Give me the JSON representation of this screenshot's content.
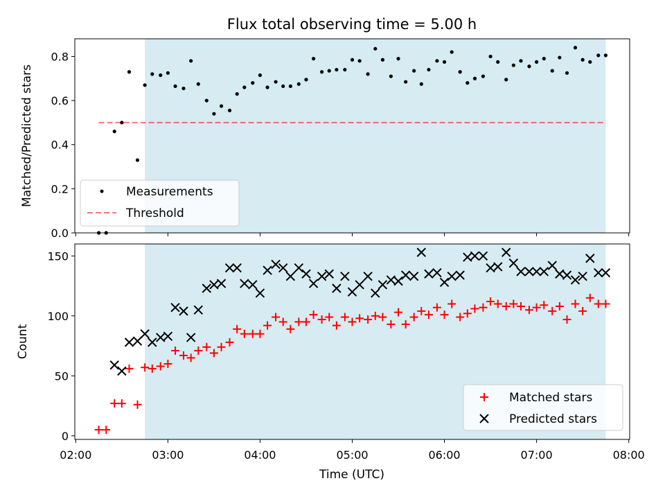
{
  "chart_data": {
    "title": "Flux total observing time = 5.00 h",
    "xlabel": "Time (UTC)",
    "x_unit": "hours UTC (decimal)",
    "xlim": [
      1.99,
      8.01
    ],
    "xticks": [
      {
        "v": 2,
        "label": "02:00"
      },
      {
        "v": 3,
        "label": "03:00"
      },
      {
        "v": 4,
        "label": "04:00"
      },
      {
        "v": 5,
        "label": "05:00"
      },
      {
        "v": 6,
        "label": "06:00"
      },
      {
        "v": 7,
        "label": "07:00"
      },
      {
        "v": 8,
        "label": "08:00"
      }
    ],
    "observing_window": [
      2.75,
      7.75
    ],
    "colors": {
      "window": "#add8e6",
      "matched": "#ff0000",
      "predicted": "#000000",
      "threshold": "#ff0000"
    },
    "top": {
      "type": "scatter",
      "ylabel": "Matched/Predicted stars",
      "ylim": [
        0,
        0.88
      ],
      "yticks": [
        {
          "v": 0,
          "label": "0.0"
        },
        {
          "v": 0.2,
          "label": "0.2"
        },
        {
          "v": 0.4,
          "label": "0.4"
        },
        {
          "v": 0.6,
          "label": "0.6"
        },
        {
          "v": 0.8,
          "label": "0.8"
        }
      ],
      "threshold": 0.5,
      "threshold_x": [
        2.25,
        7.75
      ],
      "legend": {
        "position": "lower-left",
        "measurements": "Measurements",
        "threshold": "Threshold"
      },
      "x": [
        2.25,
        2.33,
        2.42,
        2.5,
        2.58,
        2.67,
        2.75,
        2.83,
        2.92,
        3.0,
        3.08,
        3.17,
        3.25,
        3.33,
        3.42,
        3.5,
        3.58,
        3.67,
        3.75,
        3.83,
        3.92,
        4.0,
        4.08,
        4.17,
        4.25,
        4.33,
        4.42,
        4.5,
        4.58,
        4.67,
        4.75,
        4.83,
        4.92,
        5.0,
        5.08,
        5.17,
        5.25,
        5.33,
        5.42,
        5.5,
        5.58,
        5.67,
        5.75,
        5.83,
        5.92,
        6.0,
        6.08,
        6.17,
        6.25,
        6.33,
        6.42,
        6.5,
        6.58,
        6.67,
        6.75,
        6.83,
        6.92,
        7.0,
        7.08,
        7.17,
        7.25,
        7.33,
        7.42,
        7.5,
        7.58,
        7.67,
        7.75
      ],
      "values": [
        0.0,
        0.0,
        0.46,
        0.5,
        0.73,
        0.33,
        0.67,
        0.72,
        0.715,
        0.725,
        0.665,
        0.655,
        0.78,
        0.675,
        0.6,
        0.54,
        0.575,
        0.555,
        0.63,
        0.66,
        0.68,
        0.715,
        0.66,
        0.685,
        0.665,
        0.665,
        0.675,
        0.695,
        0.79,
        0.73,
        0.735,
        0.74,
        0.74,
        0.785,
        0.78,
        0.72,
        0.835,
        0.785,
        0.71,
        0.79,
        0.685,
        0.735,
        0.675,
        0.74,
        0.78,
        0.775,
        0.82,
        0.73,
        0.68,
        0.7,
        0.71,
        0.8,
        0.775,
        0.695,
        0.76,
        0.78,
        0.755,
        0.775,
        0.79,
        0.735,
        0.795,
        0.725,
        0.84,
        0.785,
        0.775,
        0.805,
        0.805
      ]
    },
    "bottom": {
      "type": "scatter",
      "ylabel": "Count",
      "ylim": [
        -3,
        160
      ],
      "yticks": [
        {
          "v": 0,
          "label": "0"
        },
        {
          "v": 50,
          "label": "50"
        },
        {
          "v": 100,
          "label": "100"
        },
        {
          "v": 150,
          "label": "150"
        }
      ],
      "legend": {
        "position": "lower-right"
      },
      "series": [
        {
          "name": "Matched stars",
          "marker": "plus",
          "x": [
            2.25,
            2.33,
            2.42,
            2.5,
            2.58,
            2.67,
            2.75,
            2.83,
            2.92,
            3.0,
            3.08,
            3.17,
            3.25,
            3.33,
            3.42,
            3.5,
            3.58,
            3.67,
            3.75,
            3.83,
            3.92,
            4.0,
            4.08,
            4.17,
            4.25,
            4.33,
            4.42,
            4.5,
            4.58,
            4.67,
            4.75,
            4.83,
            4.92,
            5.0,
            5.08,
            5.17,
            5.25,
            5.33,
            5.42,
            5.5,
            5.58,
            5.67,
            5.75,
            5.83,
            5.92,
            6.0,
            6.08,
            6.17,
            6.25,
            6.33,
            6.42,
            6.5,
            6.58,
            6.67,
            6.75,
            6.83,
            6.92,
            7.0,
            7.08,
            7.17,
            7.25,
            7.33,
            7.42,
            7.5,
            7.58,
            7.67,
            7.75
          ],
          "values": [
            5,
            5,
            27,
            27,
            56,
            26,
            57,
            56,
            58,
            60,
            71,
            67,
            65,
            71,
            74,
            69,
            74,
            78,
            89,
            85,
            85,
            85,
            92,
            99,
            95,
            89,
            95,
            95,
            101,
            97,
            99,
            92,
            99,
            95,
            98,
            97,
            100,
            99,
            93,
            103,
            93,
            99,
            104,
            101,
            107,
            101,
            110,
            99,
            102,
            106,
            107,
            112,
            110,
            108,
            110,
            108,
            105,
            107,
            109,
            104,
            108,
            97,
            110,
            104,
            115,
            110,
            110
          ]
        },
        {
          "name": "Predicted stars",
          "marker": "x",
          "x": [
            2.42,
            2.5,
            2.58,
            2.67,
            2.75,
            2.83,
            2.92,
            3.0,
            3.08,
            3.17,
            3.25,
            3.33,
            3.42,
            3.5,
            3.58,
            3.67,
            3.75,
            3.83,
            3.92,
            4.0,
            4.08,
            4.17,
            4.25,
            4.33,
            4.42,
            4.5,
            4.58,
            4.67,
            4.75,
            4.83,
            4.92,
            5.0,
            5.08,
            5.17,
            5.25,
            5.33,
            5.42,
            5.5,
            5.58,
            5.67,
            5.75,
            5.83,
            5.92,
            6.0,
            6.08,
            6.17,
            6.25,
            6.33,
            6.42,
            6.5,
            6.58,
            6.67,
            6.75,
            6.83,
            6.92,
            7.0,
            7.08,
            7.17,
            7.25,
            7.33,
            7.42,
            7.5,
            7.58,
            7.67,
            7.75
          ],
          "values": [
            59,
            54,
            78,
            79,
            85,
            78,
            82,
            83,
            107,
            104,
            82,
            105,
            123,
            126,
            127,
            140,
            140,
            127,
            126,
            119,
            138,
            143,
            140,
            133,
            140,
            135,
            127,
            133,
            135,
            123,
            133,
            120,
            126,
            133,
            119,
            126,
            130,
            129,
            134,
            133,
            153,
            135,
            136,
            128,
            133,
            134,
            149,
            150,
            150,
            140,
            141,
            153,
            144,
            137,
            137,
            137,
            137,
            142,
            135,
            134,
            130,
            133,
            148,
            136,
            136
          ]
        }
      ]
    }
  }
}
